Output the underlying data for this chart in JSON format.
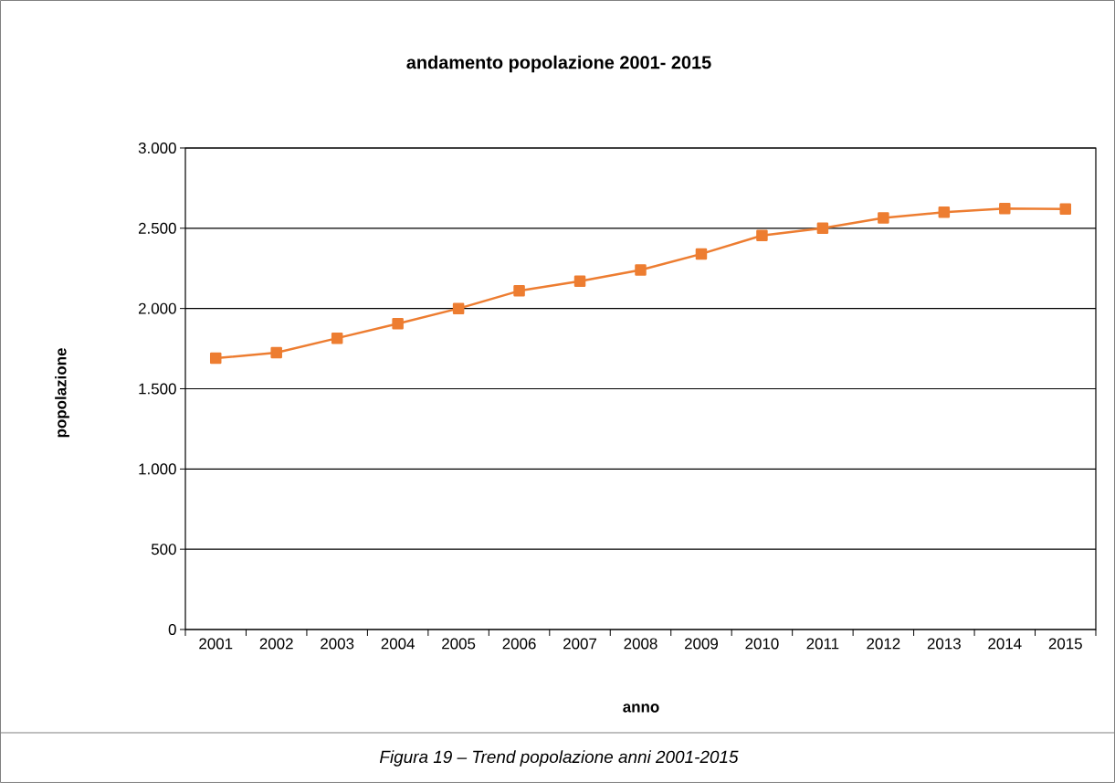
{
  "chart_data": {
    "type": "line",
    "title": "andamento popolazione 2001- 2015",
    "xlabel": "anno",
    "ylabel": "popolazione",
    "categories": [
      "2001",
      "2002",
      "2003",
      "2004",
      "2005",
      "2006",
      "2007",
      "2008",
      "2009",
      "2010",
      "2011",
      "2012",
      "2013",
      "2014",
      "2015"
    ],
    "series": [
      {
        "color": "#ed7d31",
        "values": [
          1690,
          1725,
          1815,
          1905,
          2000,
          2110,
          2170,
          2240,
          2340,
          2455,
          2500,
          2565,
          2600,
          2623,
          2620
        ]
      }
    ],
    "ylim": [
      0,
      3000
    ],
    "yticks": [
      {
        "value": 0,
        "label": "0"
      },
      {
        "value": 500,
        "label": "500"
      },
      {
        "value": 1000,
        "label": "1.000"
      },
      {
        "value": 1500,
        "label": "1.500"
      },
      {
        "value": 2000,
        "label": "2.000"
      },
      {
        "value": 2500,
        "label": "2.500"
      },
      {
        "value": 3000,
        "label": "3.000"
      }
    ],
    "grid": "y",
    "marker": "square",
    "line_style": "solid",
    "annotations": [
      "Figura 19 – Trend popolazione anni 2001-2015"
    ]
  }
}
